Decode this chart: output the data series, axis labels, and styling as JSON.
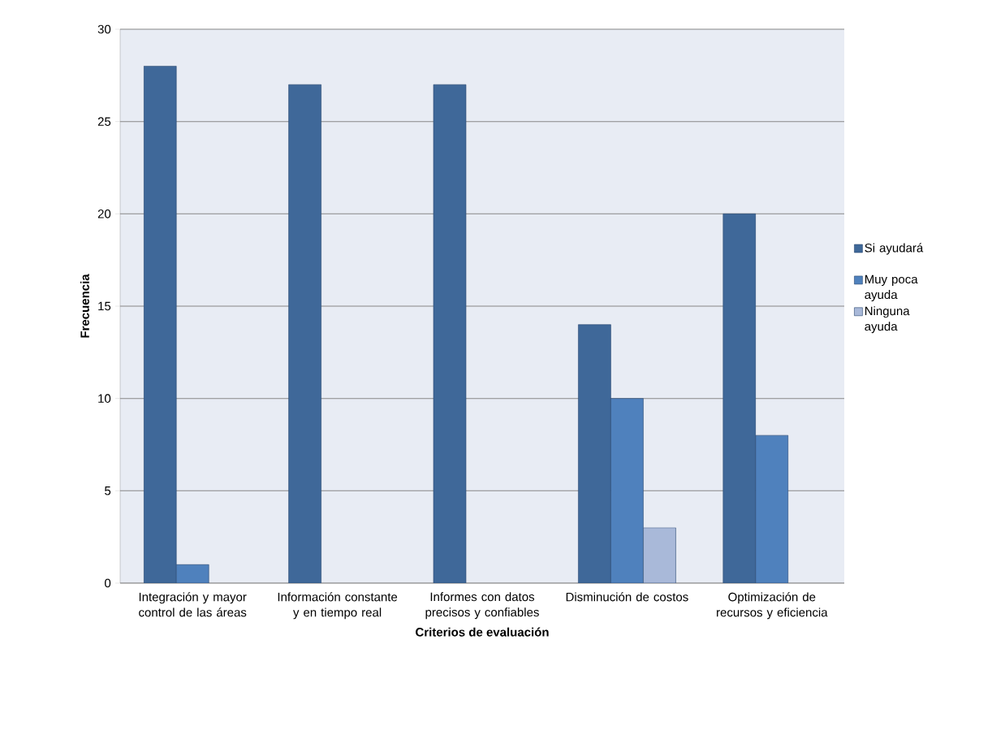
{
  "chart_data": {
    "type": "bar",
    "xlabel": "Criterios de evaluación",
    "ylabel": "Frecuencia",
    "categories": [
      "Integración y mayor control de las áreas",
      "Información constante y en tiempo real",
      "Informes con datos precisos y confiables",
      "Disminución de costos",
      "Optimización de recursos y eficiencia"
    ],
    "series": [
      {
        "name": "Si ayudará",
        "color": "#3f6899",
        "values": [
          28,
          27,
          27,
          14,
          20
        ]
      },
      {
        "name": "Muy poca ayuda",
        "color": "#4f81bd",
        "values": [
          1,
          null,
          null,
          10,
          8
        ]
      },
      {
        "name": "Ninguna ayuda",
        "color": "#a9b9d9",
        "values": [
          null,
          null,
          null,
          3,
          null
        ]
      }
    ],
    "ylim": [
      0,
      30
    ],
    "yticks": [
      0,
      5,
      10,
      15,
      20,
      25,
      30
    ],
    "grid": "y",
    "legend": "right"
  }
}
